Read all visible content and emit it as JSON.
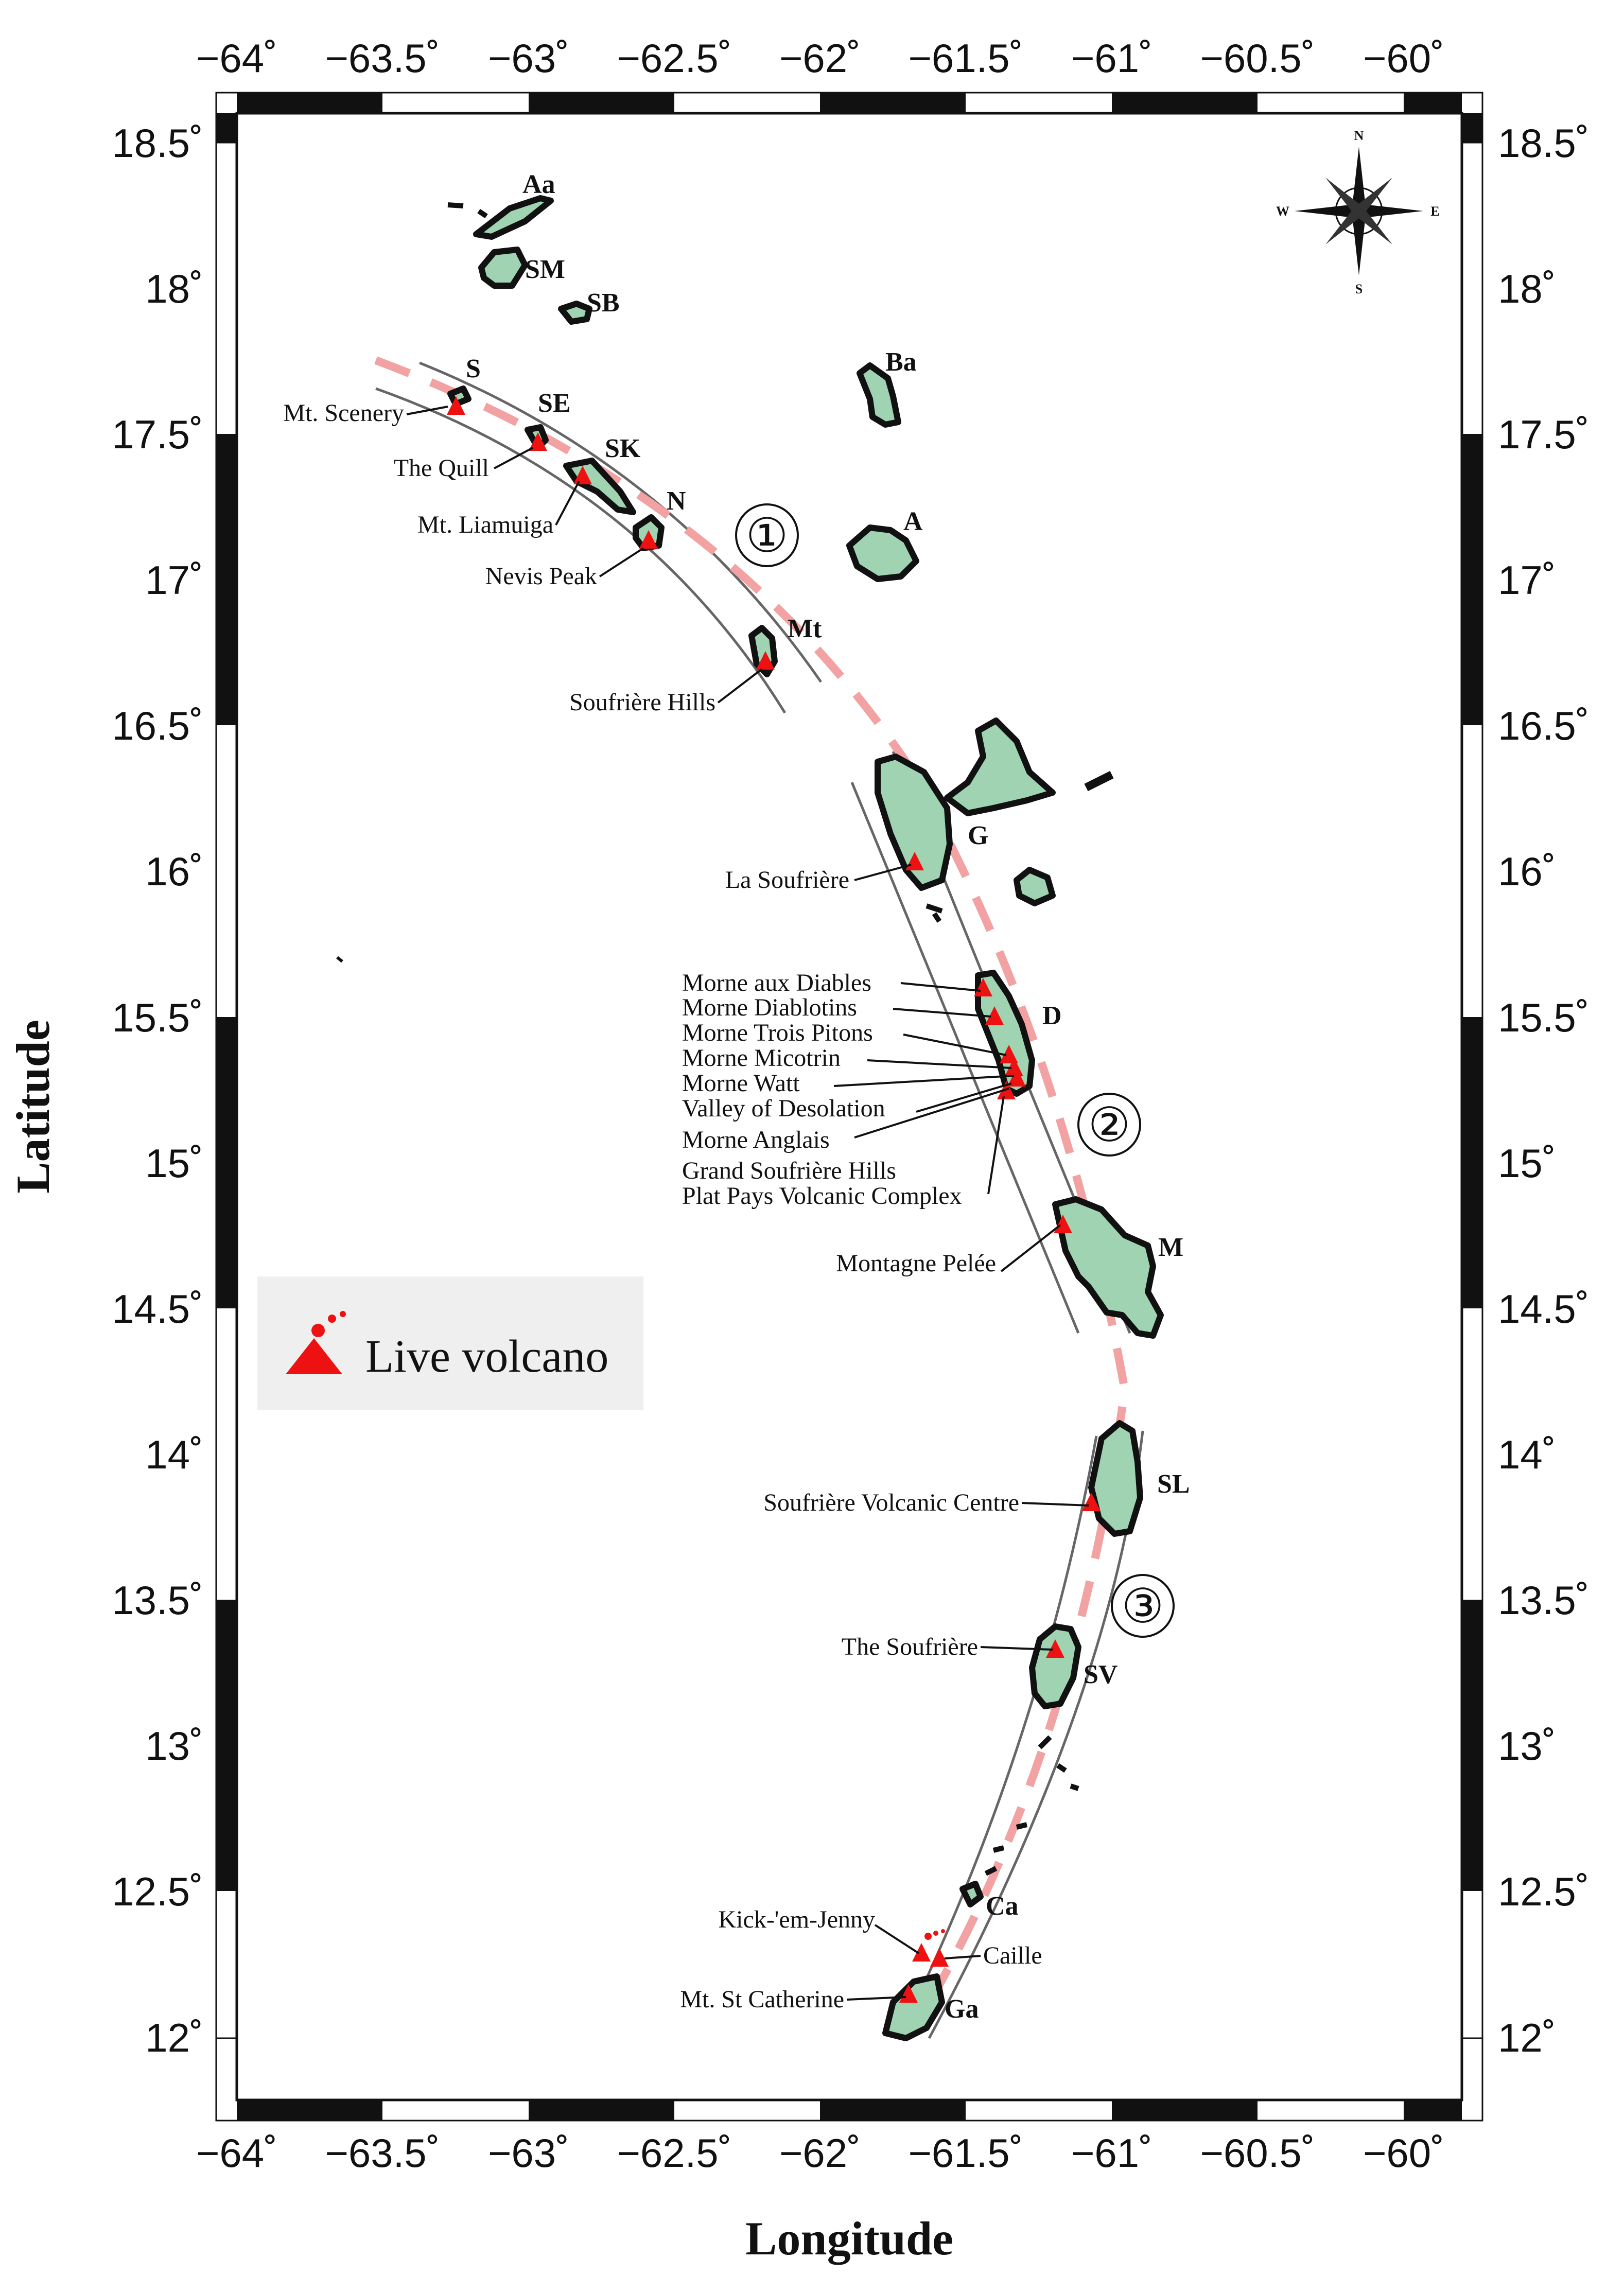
{
  "axes": {
    "xlabel": "Longitude",
    "ylabel": "Latitude",
    "lon_ticks": [
      "−64˚",
      "−63.5˚",
      "−63˚",
      "−62.5˚",
      "−62˚",
      "−61.5˚",
      "−61˚",
      "−60.5˚",
      "−60˚"
    ],
    "lat_ticks": [
      "18.5˚",
      "18˚",
      "17.5˚",
      "17˚",
      "16.5˚",
      "16˚",
      "15.5˚",
      "15˚",
      "14.5˚",
      "14˚",
      "13.5˚",
      "13˚",
      "12.5˚",
      "12˚"
    ]
  },
  "legend": {
    "label": "Live volcano"
  },
  "segments": [
    "①",
    "②",
    "③"
  ],
  "compass": {
    "n": "N",
    "s": "S",
    "e": "E",
    "w": "W"
  },
  "islands": {
    "Aa": "Aa",
    "SM": "SM",
    "SB": "SB",
    "S": "S",
    "SE": "SE",
    "SK": "SK",
    "N": "N",
    "Ba": "Ba",
    "A": "A",
    "Mt": "Mt",
    "G": "G",
    "D": "D",
    "M": "M",
    "SL": "SL",
    "SV": "SV",
    "Ca": "Ca",
    "Ga": "Ga"
  },
  "volcanoes": {
    "v1": "Mt. Scenery",
    "v2": "The Quill",
    "v3": "Mt. Liamuiga",
    "v4": "Nevis Peak",
    "v5": "Soufrière Hills",
    "v6": "La Soufrière",
    "v7": "Morne aux Diables",
    "v8": "Morne Diablotins",
    "v9": "Morne Trois Pitons",
    "v10": "Morne Micotrin",
    "v11": "Morne Watt",
    "v12": "Valley of Desolation",
    "v13": "Morne Anglais",
    "v14": "Grand Soufrière Hills",
    "v15": "Plat Pays Volcanic Complex",
    "v16": "Montagne Pelée",
    "v17": "Soufrière Volcanic Centre",
    "v18": "The Soufrière",
    "v19": "Kick-'em-Jenny",
    "v20": "Caille",
    "v21": "Mt. St Catherine"
  }
}
